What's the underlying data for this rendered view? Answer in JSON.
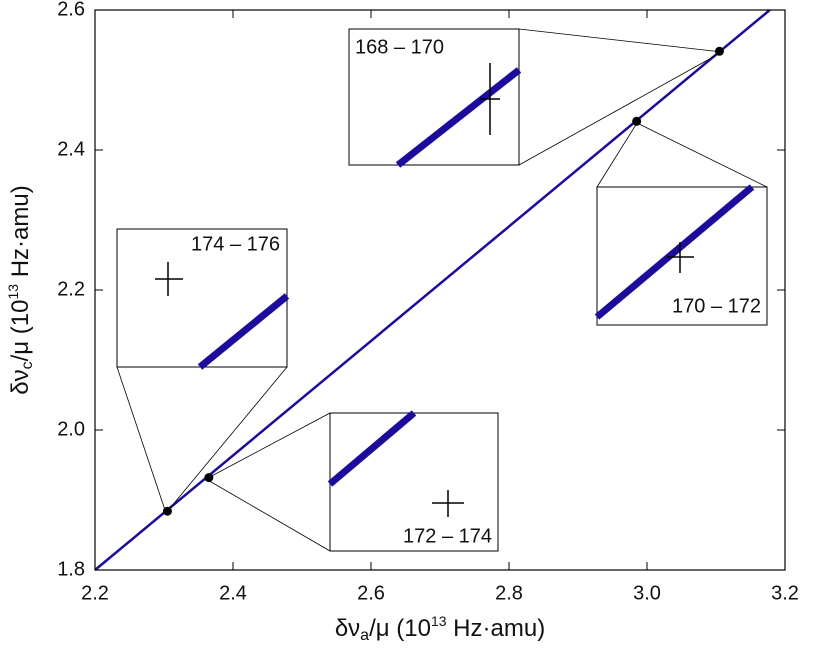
{
  "chart_data": {
    "type": "scatter",
    "x_label_parts": [
      "δν",
      "a",
      "/μ (10",
      "13",
      " Hz·amu)"
    ],
    "y_label_parts": [
      "δν",
      "c",
      "/μ (10",
      "13",
      " Hz·amu)"
    ],
    "xlim": [
      2.2,
      3.2
    ],
    "xticks": [
      2.2,
      2.4,
      2.6,
      2.8,
      {
        "value": 3,
        "label": "3.0"
      },
      3.2
    ],
    "ylim": [
      1.8,
      2.6
    ],
    "yticks": [
      1.8,
      {
        "value": 2,
        "label": "2.0"
      },
      2.2,
      2.4,
      2.6
    ],
    "points": {
      "x": [
        2.305,
        2.365,
        2.985,
        3.105
      ],
      "y": [
        1.884,
        1.932,
        2.441,
        2.541
      ],
      "color": "#000000"
    },
    "fit_line": {
      "x": [
        2.2,
        3.178
      ],
      "y": [
        1.8,
        2.6
      ],
      "color": "#1c0c9c"
    },
    "insets": [
      {
        "label": "168 – 170"
      },
      {
        "label": "170 – 172"
      },
      {
        "label": "172 – 174"
      },
      {
        "label": "174 – 176"
      }
    ]
  }
}
